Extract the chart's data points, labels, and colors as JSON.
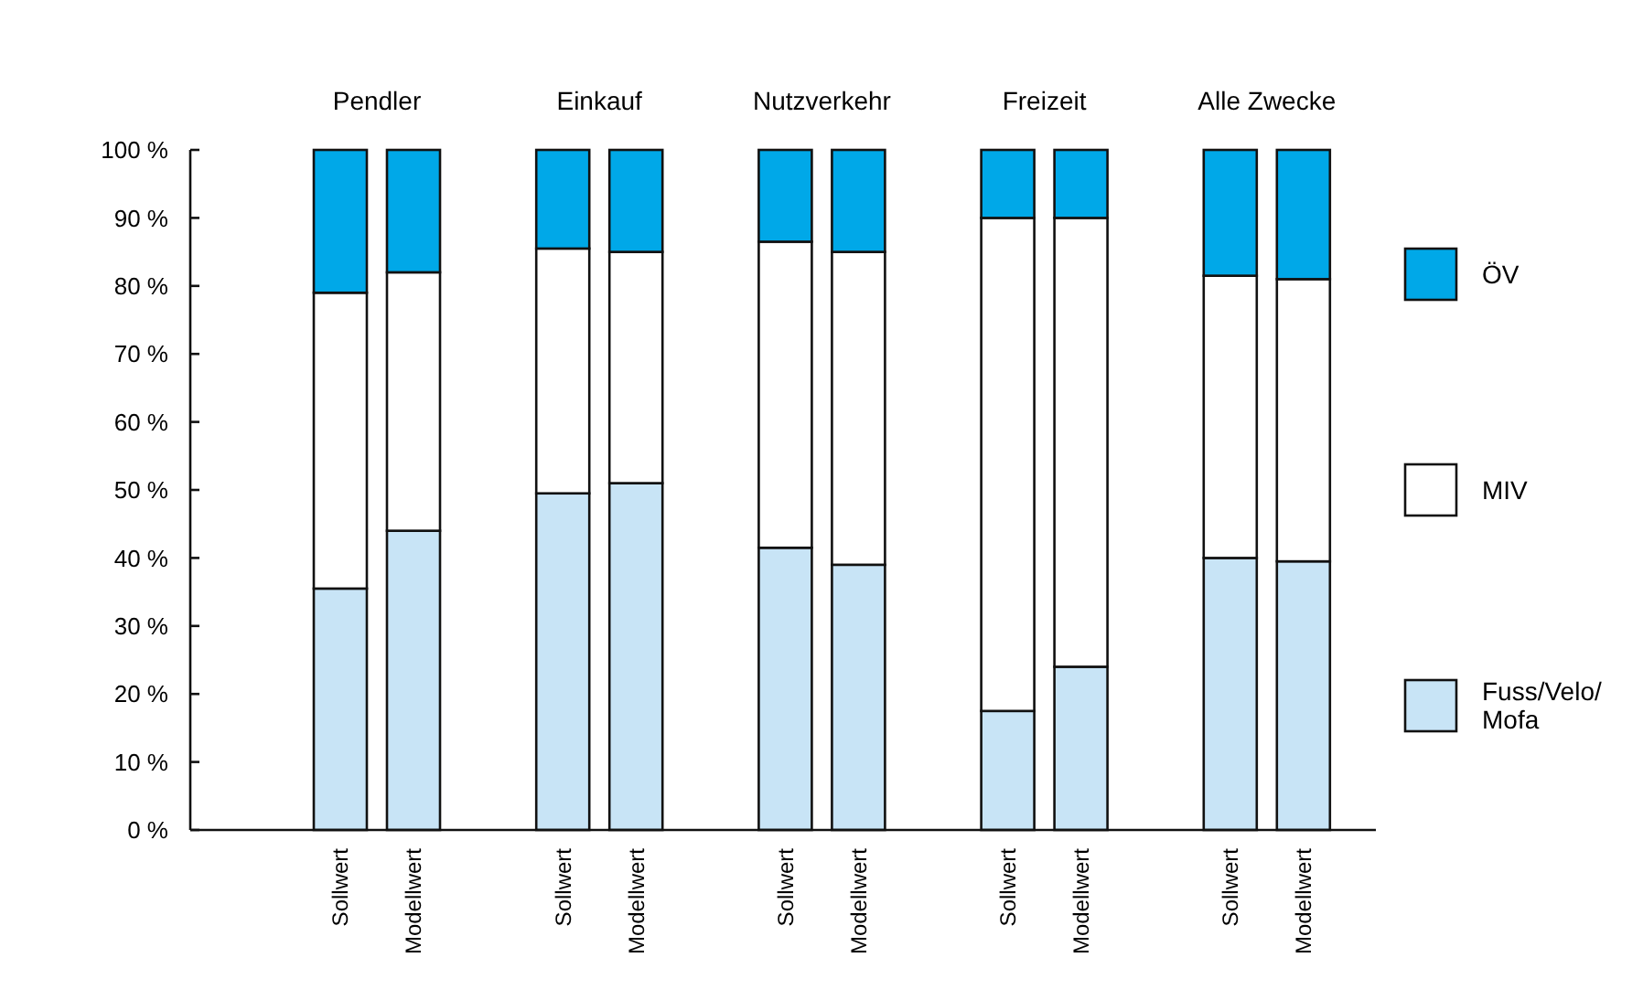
{
  "chart_data": {
    "type": "bar",
    "stacked": true,
    "categories": [
      "Sollwert",
      "Modellwert",
      "Sollwert",
      "Modellwert",
      "Sollwert",
      "Modellwert",
      "Sollwert",
      "Modellwert",
      "Sollwert",
      "Modellwert"
    ],
    "series": [
      {
        "name": "Fuss/Velo/Mofa",
        "color": "#c8e4f6",
        "values": [
          35.5,
          44,
          49.5,
          51,
          41.5,
          39,
          17.5,
          24,
          40,
          39.5
        ]
      },
      {
        "name": "MIV",
        "color": "#ffffff",
        "values": [
          43.5,
          38,
          36,
          34,
          45,
          46,
          72.5,
          66,
          41.5,
          41.5
        ]
      },
      {
        "name": "ÖV",
        "color": "#00a8e8",
        "values": [
          21,
          18,
          14.5,
          15,
          13.5,
          15,
          10,
          10,
          18.5,
          19
        ]
      }
    ],
    "annotations": [
      "Pendler",
      "Einkauf",
      "Nutzverkehr",
      "Freizeit",
      "Alle Zwecke"
    ],
    "ylim": [
      0,
      100
    ],
    "yticks": [
      {
        "value": 0,
        "label": "0 %"
      },
      {
        "value": 10,
        "label": "10 %"
      },
      {
        "value": 20,
        "label": "20 %"
      },
      {
        "value": 30,
        "label": "30 %"
      },
      {
        "value": 40,
        "label": "40 %"
      },
      {
        "value": 50,
        "label": "50 %"
      },
      {
        "value": 60,
        "label": "60 %"
      },
      {
        "value": 70,
        "label": "70 %"
      },
      {
        "value": 80,
        "label": "80 %"
      },
      {
        "value": 90,
        "label": "90 %"
      },
      {
        "value": 100,
        "label": "100 %"
      }
    ],
    "legend": "right",
    "grid": false
  }
}
